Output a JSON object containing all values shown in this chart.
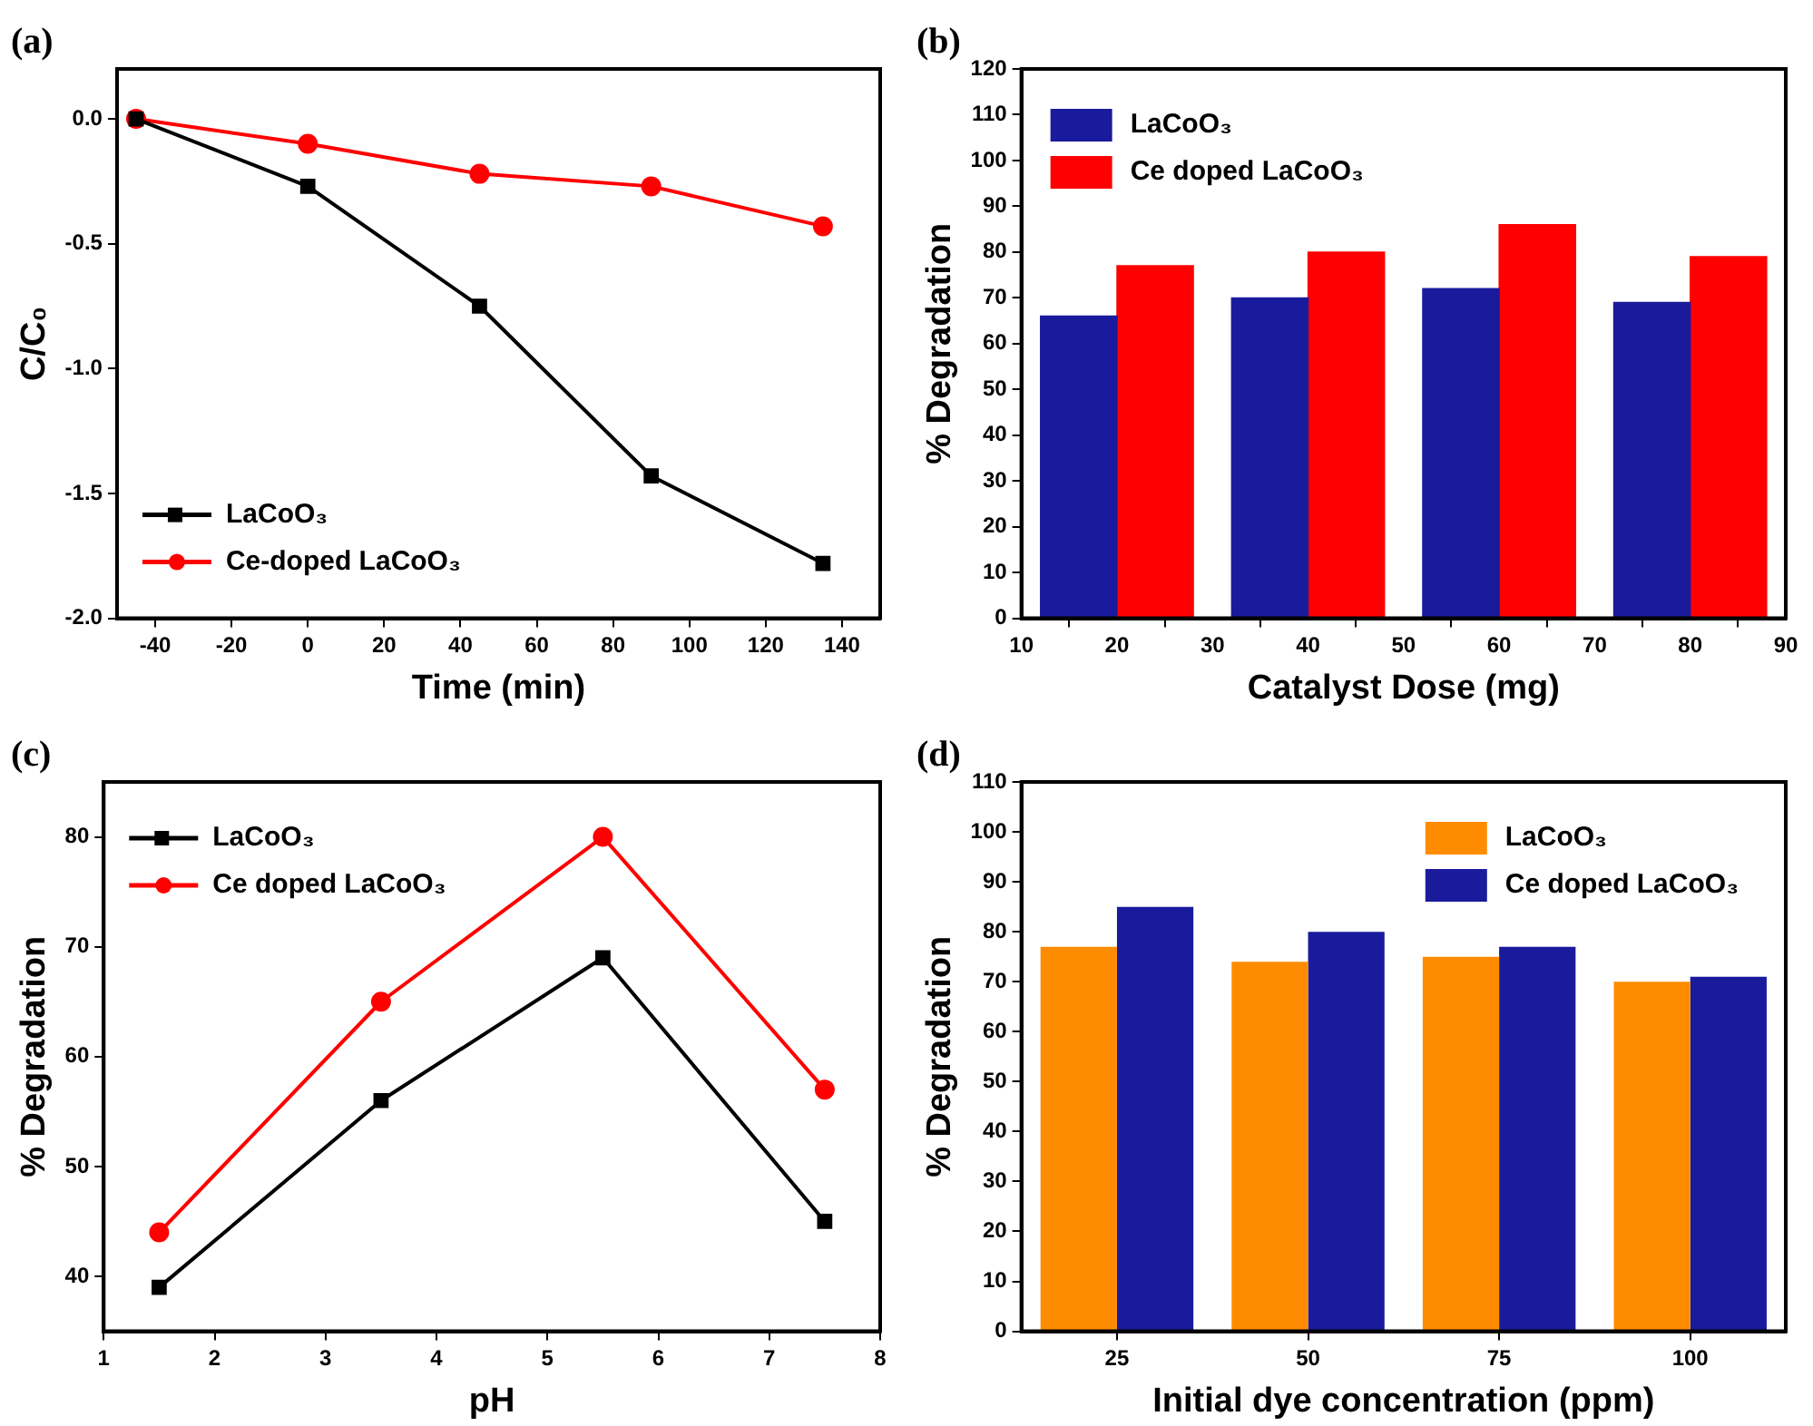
{
  "chart_data": [
    {
      "type": "line",
      "title": "(a)",
      "xlabel": "Time (min)",
      "ylabel": "C/C₀",
      "x": [
        -45,
        0,
        45,
        90,
        135
      ],
      "xlim": [
        -50,
        150
      ],
      "xticks": [
        -40,
        -20,
        0,
        20,
        40,
        60,
        80,
        100,
        120,
        140
      ],
      "ylim": [
        -2.0,
        0.2
      ],
      "yticks": [
        {
          "value": 0,
          "label": "0.0"
        },
        {
          "value": -0.5,
          "label": "-0.5"
        },
        {
          "value": -1,
          "label": "-1.0"
        },
        {
          "value": -1.5,
          "label": "-1.5"
        },
        {
          "value": -2,
          "label": "-2.0"
        }
      ],
      "legend": "bottom left",
      "grid": false,
      "series": [
        {
          "name": "LaCoO₃",
          "color": "#000000",
          "marker": "square",
          "values": [
            0,
            -0.27,
            -0.75,
            -1.43,
            -1.78
          ]
        },
        {
          "name": "Ce-doped LaCoO₃",
          "color": "#ff0000",
          "marker": "circle",
          "values": [
            0,
            -0.1,
            -0.22,
            -0.27,
            -0.43
          ]
        }
      ]
    },
    {
      "type": "bar",
      "title": "(b)",
      "xlabel": "Catalyst Dose (mg)",
      "ylabel": "% Degradation",
      "x": [
        20,
        40,
        60,
        80
      ],
      "xlim": [
        10,
        90
      ],
      "xticks": [
        10,
        20,
        30,
        40,
        50,
        60,
        70,
        80,
        90
      ],
      "ylim": [
        0,
        120
      ],
      "yticks": [
        0,
        10,
        20,
        30,
        40,
        50,
        60,
        70,
        80,
        90,
        100,
        110,
        120
      ],
      "legend": "top left",
      "grid": false,
      "series": [
        {
          "name": "LaCoO₃",
          "color": "#1a1a9c",
          "values": [
            66,
            70,
            72,
            69
          ]
        },
        {
          "name": "Ce doped LaCoO₃",
          "color": "#ff0000",
          "values": [
            77,
            80,
            86,
            79
          ]
        }
      ]
    },
    {
      "type": "line",
      "title": "(c)",
      "xlabel": "pH",
      "ylabel": "% Degradation",
      "x": [
        1.5,
        3.5,
        5.5,
        7.5
      ],
      "xlim": [
        1,
        8
      ],
      "xticks": [
        1,
        2,
        3,
        4,
        5,
        6,
        7,
        8
      ],
      "ylim": [
        35,
        85
      ],
      "yticks": [
        40,
        50,
        60,
        70,
        80
      ],
      "legend": "top left",
      "grid": false,
      "series": [
        {
          "name": "LaCoO₃",
          "color": "#000000",
          "marker": "square",
          "values": [
            39,
            56,
            69,
            45
          ]
        },
        {
          "name": "Ce doped LaCoO₃",
          "color": "#ff0000",
          "marker": "circle",
          "values": [
            44,
            65,
            80,
            57
          ]
        }
      ]
    },
    {
      "type": "bar",
      "title": "(d)",
      "xlabel": "Initial dye concentration (ppm)",
      "ylabel": "% Degradation",
      "categories": [
        "25",
        "50",
        "75",
        "100"
      ],
      "ylim": [
        0,
        110
      ],
      "yticks": [
        0,
        10,
        20,
        30,
        40,
        50,
        60,
        70,
        80,
        90,
        100,
        110
      ],
      "legend": "top right",
      "grid": false,
      "series": [
        {
          "name": "LaCoO₃",
          "color": "#ff8c00",
          "values": [
            77,
            74,
            75,
            70
          ]
        },
        {
          "name": "Ce doped LaCoO₃",
          "color": "#1a1a9c",
          "values": [
            85,
            80,
            77,
            71
          ]
        }
      ]
    }
  ]
}
